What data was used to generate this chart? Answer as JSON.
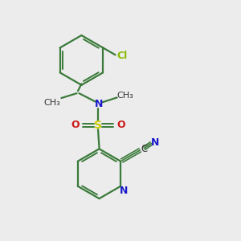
{
  "background_color": "#ececec",
  "bond_color": "#3a7a3a",
  "N_color": "#1a1acc",
  "O_color": "#cc1a1a",
  "S_color": "#cccc00",
  "Cl_color": "#88bb00",
  "C_color": "#333333",
  "figsize": [
    3.0,
    3.0
  ],
  "dpi": 100,
  "xlim": [
    0,
    10
  ],
  "ylim": [
    0,
    10
  ]
}
